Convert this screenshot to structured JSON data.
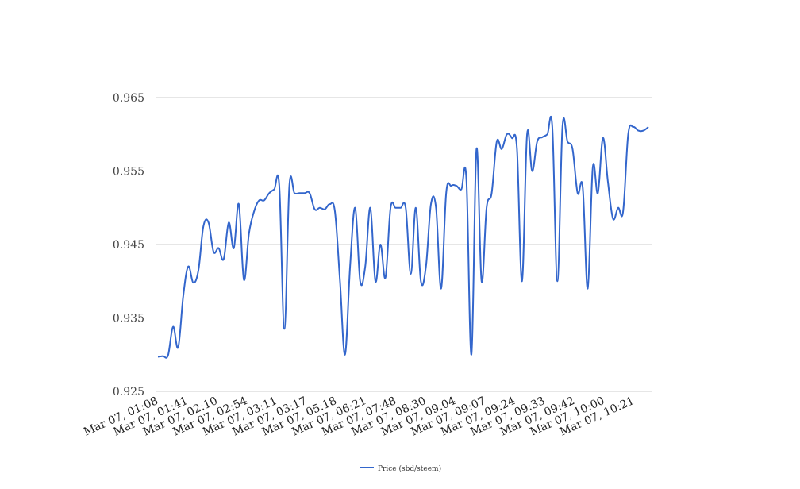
{
  "chart_data": {
    "type": "line",
    "title": "",
    "xlabel": "",
    "ylabel": "",
    "ylim": [
      0.925,
      0.965
    ],
    "yticks": [
      "0.965",
      "0.955",
      "0.945",
      "0.935",
      "0.925"
    ],
    "ytick_values": [
      0.965,
      0.955,
      0.945,
      0.935,
      0.925
    ],
    "xtick_labels": [
      "Mar 07, 01:08",
      "Mar 07, 01:41",
      "Mar 07, 02:10",
      "Mar 07, 02:54",
      "Mar 07, 03:11",
      "Mar 07, 03:17",
      "Mar 07, 05:18",
      "Mar 07, 06:21",
      "Mar 07, 07:48",
      "Mar 07, 08:30",
      "Mar 07, 09:04",
      "Mar 07, 09:07",
      "Mar 07, 09:24",
      "Mar 07, 09:33",
      "Mar 07, 09:42",
      "Mar 07, 10:00",
      "Mar 07, 10:21"
    ],
    "grid": true,
    "legend_position": "bottom-center",
    "series": [
      {
        "name": "Price (sbd/steem)",
        "color": "#3366cc",
        "values": [
          0.9297,
          0.9298,
          0.9299,
          0.9338,
          0.931,
          0.938,
          0.942,
          0.9398,
          0.9415,
          0.9475,
          0.948,
          0.944,
          0.9445,
          0.943,
          0.948,
          0.9445,
          0.9505,
          0.9402,
          0.9465,
          0.9495,
          0.951,
          0.951,
          0.952,
          0.9525,
          0.953,
          0.9335,
          0.953,
          0.952,
          0.952,
          0.952,
          0.952,
          0.9498,
          0.95,
          0.9498,
          0.9505,
          0.9495,
          0.94,
          0.93,
          0.942,
          0.95,
          0.94,
          0.942,
          0.95,
          0.94,
          0.945,
          0.9405,
          0.95,
          0.95,
          0.95,
          0.95,
          0.941,
          0.95,
          0.94,
          0.942,
          0.9505,
          0.95,
          0.939,
          0.952,
          0.953,
          0.953,
          0.9525,
          0.954,
          0.93,
          0.958,
          0.94,
          0.95,
          0.952,
          0.959,
          0.958,
          0.96,
          0.9595,
          0.958,
          0.94,
          0.96,
          0.955,
          0.959,
          0.9596,
          0.96,
          0.961,
          0.94,
          0.961,
          0.959,
          0.958,
          0.952,
          0.9528,
          0.939,
          0.9555,
          0.952,
          0.9595,
          0.9535,
          0.9485,
          0.95,
          0.9495,
          0.96,
          0.961,
          0.9605,
          0.9605,
          0.961
        ]
      }
    ]
  }
}
